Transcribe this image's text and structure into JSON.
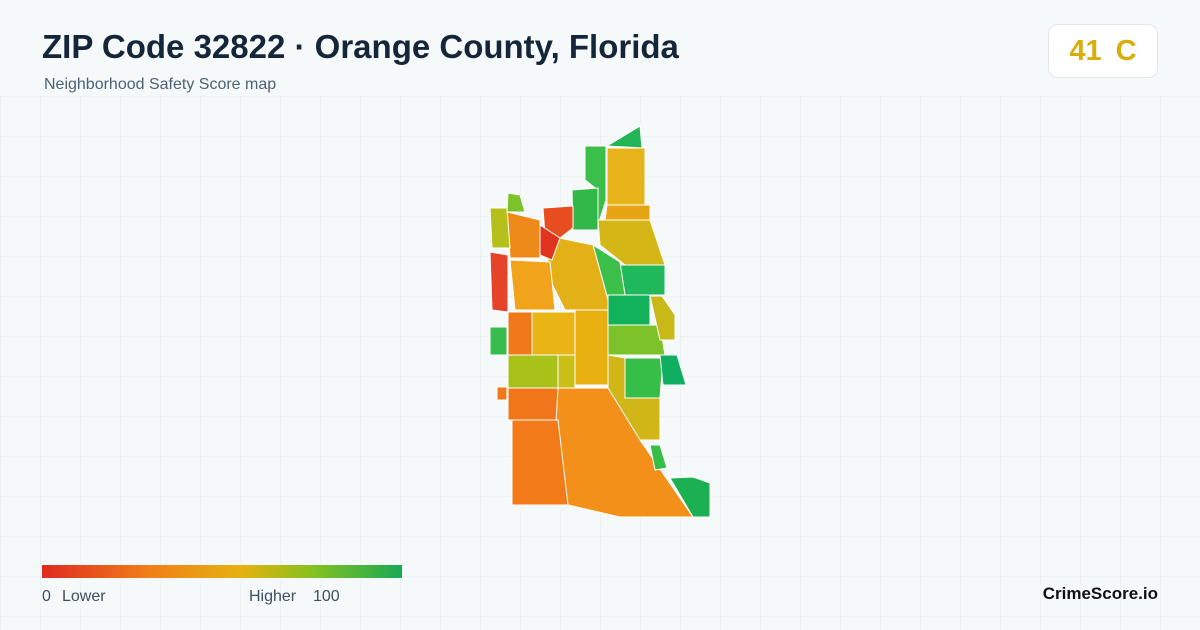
{
  "header": {
    "title": "ZIP Code 32822 · Orange County, Florida",
    "subtitle": "Neighborhood Safety Score map"
  },
  "score": {
    "value": 41,
    "grade": "C"
  },
  "legend": {
    "min": 0,
    "min_label": "Lower",
    "max_label": "Higher",
    "max": 100
  },
  "brand": "CrimeScore.io"
}
